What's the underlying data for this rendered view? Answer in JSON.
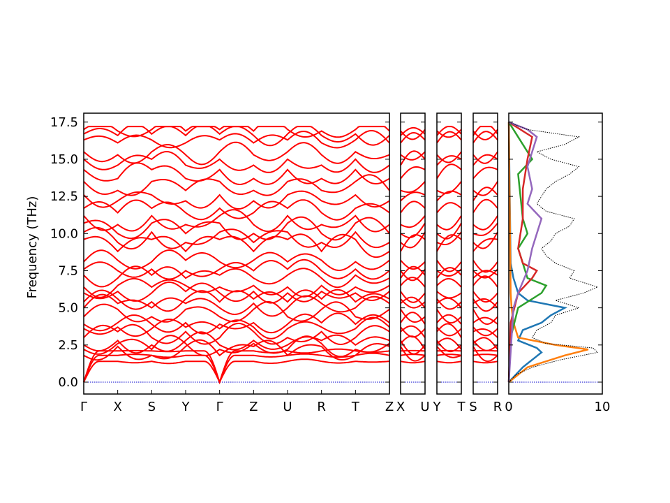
{
  "chart_data": {
    "type": "line",
    "ylabel": "Frequency (THz)",
    "ylim": [
      -0.8,
      18.1
    ],
    "yticks": [
      0.0,
      2.5,
      5.0,
      7.5,
      10.0,
      12.5,
      15.0,
      17.5
    ],
    "ytick_labels": [
      "0.0",
      "2.5",
      "5.0",
      "7.5",
      "10.0",
      "12.5",
      "15.0",
      "17.5"
    ],
    "band_color": "#ff0000",
    "zero_line_color": "#0000cd",
    "bands": {
      "segments": [
        {
          "name": "main",
          "labels": [
            "Γ",
            "X",
            "S",
            "Y",
            "Γ",
            "Z",
            "U",
            "R",
            "T",
            "Z"
          ]
        },
        {
          "name": "X-U",
          "labels": [
            "X",
            "U"
          ]
        },
        {
          "name": "Y-T",
          "labels": [
            "Y",
            "T"
          ]
        },
        {
          "name": "S-R",
          "labels": [
            "S",
            "R"
          ]
        }
      ],
      "gamma_freqs": [
        0,
        0,
        0,
        1.8,
        2.2,
        2.5,
        3.0,
        3.6,
        3.9,
        4.4,
        5.0,
        5.4,
        6.0,
        6.4,
        7.2,
        7.6,
        8.1,
        9.6,
        10.1,
        10.7,
        11.2,
        11.7,
        12.6,
        13.5,
        14.3,
        15.0,
        15.5,
        16.3,
        16.7,
        17.0
      ],
      "end_freqs": [
        1.4,
        1.8,
        2.1,
        2.4,
        2.6,
        2.8,
        3.4,
        3.7,
        4.0,
        4.9,
        5.3,
        5.6,
        6.1,
        6.5,
        7.0,
        7.5,
        8.2,
        8.8,
        9.4,
        10.0,
        10.6,
        11.4,
        12.2,
        12.9,
        13.7,
        14.6,
        15.3,
        16.1,
        16.6,
        16.9
      ]
    },
    "dos": {
      "xlim": [
        0,
        10
      ],
      "xtick_labels": [
        "0",
        "10"
      ],
      "series_colors": [
        "#1f77b4",
        "#ff7f0e",
        "#2ca02c",
        "#d62728",
        "#9467bd"
      ],
      "total_color": "#000000",
      "total": {
        "freq": [
          0.0,
          0.5,
          1.0,
          1.5,
          2.0,
          2.3,
          2.6,
          3.0,
          3.5,
          4.0,
          4.5,
          5.0,
          5.5,
          6.0,
          6.4,
          7.0,
          7.5,
          8.0,
          8.5,
          9.0,
          9.5,
          10.0,
          10.5,
          11.0,
          11.5,
          12.0,
          12.5,
          13.0,
          13.5,
          14.0,
          14.5,
          15.0,
          15.5,
          16.0,
          16.5,
          17.0,
          17.5
        ],
        "value": [
          0.0,
          0.8,
          2.5,
          5.5,
          9.5,
          9.0,
          4.0,
          2.5,
          3.0,
          4.5,
          5.0,
          7.5,
          5.0,
          8.0,
          9.5,
          6.5,
          7.0,
          5.0,
          4.0,
          3.5,
          4.5,
          5.0,
          6.5,
          7.0,
          4.0,
          3.0,
          3.5,
          4.0,
          5.0,
          6.5,
          7.5,
          4.5,
          3.0,
          6.0,
          7.5,
          2.0,
          0.0
        ]
      },
      "partials": [
        {
          "freq": [
            0.0,
            1.0,
            2.0,
            2.3,
            2.8,
            3.5,
            4.0,
            4.5,
            5.0,
            5.5,
            6.0,
            7.0,
            8.0,
            17.5
          ],
          "value": [
            0.0,
            1.5,
            3.5,
            3.0,
            1.0,
            1.5,
            3.5,
            4.5,
            6.0,
            2.0,
            1.0,
            0.5,
            0.2,
            0.0
          ]
        },
        {
          "freq": [
            0.0,
            1.0,
            1.8,
            2.2,
            2.5,
            3.0,
            4.0,
            5.0,
            6.0,
            17.5
          ],
          "value": [
            0.0,
            2.0,
            6.0,
            8.5,
            5.0,
            1.0,
            0.5,
            0.3,
            0.2,
            0.0
          ]
        },
        {
          "freq": [
            0.0,
            3.0,
            5.0,
            6.0,
            6.5,
            7.0,
            8.0,
            9.0,
            10.0,
            11.0,
            14.0,
            15.0,
            17.5
          ],
          "value": [
            0.0,
            0.2,
            1.0,
            3.5,
            4.0,
            2.0,
            1.5,
            1.0,
            2.0,
            1.5,
            1.0,
            2.5,
            0.0
          ]
        },
        {
          "freq": [
            0.0,
            4.0,
            6.0,
            7.0,
            7.5,
            8.0,
            9.0,
            11.0,
            13.0,
            15.0,
            16.5,
            17.5
          ],
          "value": [
            0.0,
            0.2,
            1.0,
            2.5,
            3.0,
            1.5,
            1.0,
            1.5,
            1.5,
            2.0,
            2.5,
            0.0
          ]
        },
        {
          "freq": [
            0.0,
            5.0,
            6.0,
            7.5,
            9.0,
            10.0,
            11.0,
            12.0,
            13.0,
            14.5,
            15.5,
            16.5,
            17.0,
            17.5
          ],
          "value": [
            0.0,
            0.5,
            1.0,
            2.0,
            2.5,
            3.0,
            3.5,
            2.0,
            2.5,
            2.0,
            2.5,
            3.0,
            2.0,
            0.0
          ]
        }
      ]
    }
  }
}
